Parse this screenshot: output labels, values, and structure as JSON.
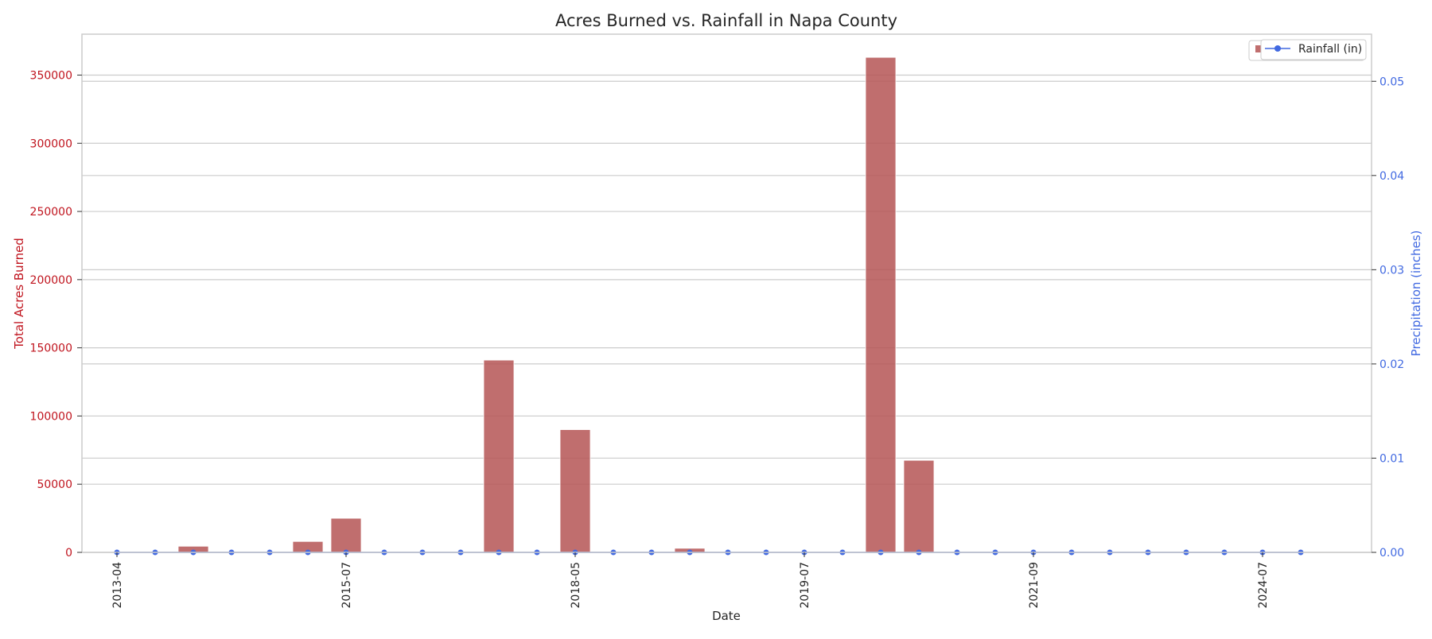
{
  "chart_data": {
    "type": "bar",
    "title": "Acres Burned vs. Rainfall in Napa County",
    "xlabel": "Date",
    "ylabel": "Total Acres Burned",
    "y2label": "Precipitation (inches)",
    "ylim": [
      0,
      380000
    ],
    "y2lim": [
      0,
      0.055
    ],
    "yticks": [
      0,
      50000,
      100000,
      150000,
      200000,
      250000,
      300000,
      350000
    ],
    "y2ticks": [
      "0.00",
      "0.01",
      "0.02",
      "0.03",
      "0.04",
      "0.05"
    ],
    "x_tick_labels": [
      {
        "index": 1,
        "label": "2013-04"
      },
      {
        "index": 7,
        "label": "2015-07"
      },
      {
        "index": 13,
        "label": "2018-05"
      },
      {
        "index": 19,
        "label": "2019-07"
      },
      {
        "index": 25,
        "label": "2021-09"
      },
      {
        "index": 31,
        "label": "2024-07"
      }
    ],
    "category_count": 33,
    "grid": true,
    "legend_position": "top-right",
    "colors": {
      "bars": "#b55555",
      "rainfall": "#4169e1",
      "left_axis": "#c0141e",
      "right_axis": "#4169e1",
      "grid": "#cccccc",
      "text": "#262626"
    },
    "series": [
      {
        "kind": "bar",
        "axis": "left",
        "values": [
          0,
          0,
          0,
          4500,
          0,
          0,
          8000,
          25000,
          0,
          0,
          0,
          141000,
          0,
          90000,
          0,
          0,
          3000,
          0,
          0,
          0,
          0,
          363000,
          67500,
          0,
          0,
          0,
          0,
          0,
          0,
          0,
          0,
          0,
          0
        ]
      },
      {
        "kind": "line",
        "axis": "right",
        "name": "Rainfall (in)",
        "x_indices": [
          1,
          2,
          3,
          4,
          5,
          6,
          7,
          8,
          9,
          10,
          11,
          12,
          13,
          14,
          15,
          16,
          17,
          18,
          19,
          20,
          21,
          22,
          23,
          24,
          25,
          26,
          27,
          28,
          29,
          30,
          31,
          32
        ],
        "values": [
          0,
          0,
          0,
          0,
          0,
          0,
          0,
          0,
          0,
          0,
          0,
          0,
          0,
          0,
          0,
          0,
          0,
          0,
          0,
          0,
          0,
          0,
          0,
          0,
          0,
          0,
          0,
          0,
          0,
          0,
          0,
          0
        ]
      }
    ]
  }
}
